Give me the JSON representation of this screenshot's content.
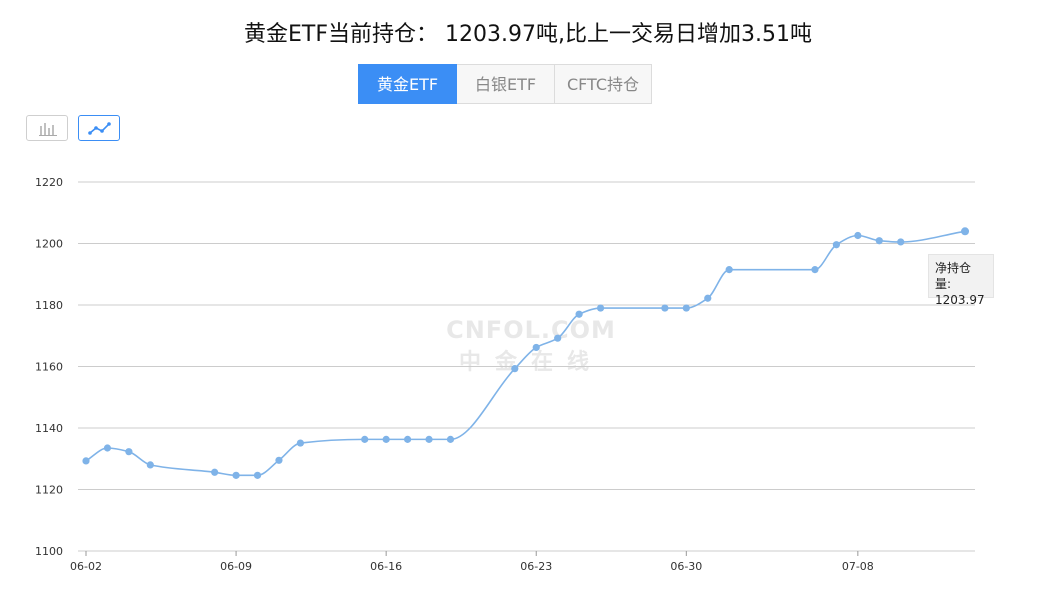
{
  "title": "黄金ETF当前持仓： 1203.97吨,比上一交易日增加3.51吨",
  "tabs": [
    {
      "label": "黄金ETF",
      "active": true
    },
    {
      "label": "白银ETF",
      "active": false
    },
    {
      "label": "CFTC持仓",
      "active": false
    }
  ],
  "chart_toggles": [
    {
      "name": "bar-chart-icon",
      "active": false
    },
    {
      "name": "line-chart-icon",
      "active": true
    }
  ],
  "watermark": {
    "line1": "CNFOL.COM",
    "line2": "中金在线"
  },
  "tooltip": {
    "label": "净持仓量:",
    "value": "1203.97"
  },
  "colors": {
    "accent": "#3b8ef5",
    "line": "#7fb3e8",
    "grid": "#cccccc"
  },
  "chart_data": {
    "type": "line",
    "ylim": [
      1100,
      1220
    ],
    "y_ticks": [
      "1100",
      "1120",
      "1140",
      "1160",
      "1180",
      "1200",
      "1220"
    ],
    "x_tick_labels": [
      "06-02",
      "06-09",
      "06-16",
      "06-23",
      "06-30",
      "07-08"
    ],
    "x_tick_days": [
      0,
      7,
      14,
      21,
      28,
      36
    ],
    "series": [
      {
        "x": [
          "06-02",
          "06-03",
          "06-04",
          "06-05",
          "06-08",
          "06-09",
          "06-10",
          "06-11",
          "06-12",
          "06-15",
          "06-16",
          "06-17",
          "06-18",
          "06-19",
          "06-22",
          "06-23",
          "06-24",
          "06-25",
          "06-26",
          "06-29",
          "06-30",
          "07-01",
          "07-02",
          "07-06",
          "07-07",
          "07-08",
          "07-09",
          "07-10",
          "07-13"
        ],
        "x_days": [
          0,
          1,
          2,
          3,
          6,
          7,
          8,
          9,
          10,
          13,
          14,
          15,
          16,
          17,
          20,
          21,
          22,
          23,
          24,
          27,
          28,
          29,
          30,
          34,
          35,
          36,
          37,
          38,
          41
        ],
        "values": [
          1129.3,
          1133.5,
          1132.3,
          1128.0,
          1125.6,
          1124.6,
          1124.6,
          1129.5,
          1135.1,
          1136.3,
          1136.3,
          1136.3,
          1136.3,
          1136.3,
          1159.3,
          1166.2,
          1169.2,
          1177.0,
          1179.0,
          1179.0,
          1179.0,
          1182.2,
          1191.5,
          1191.5,
          1199.6,
          1202.6,
          1200.9,
          1200.5,
          1203.97
        ]
      }
    ]
  }
}
